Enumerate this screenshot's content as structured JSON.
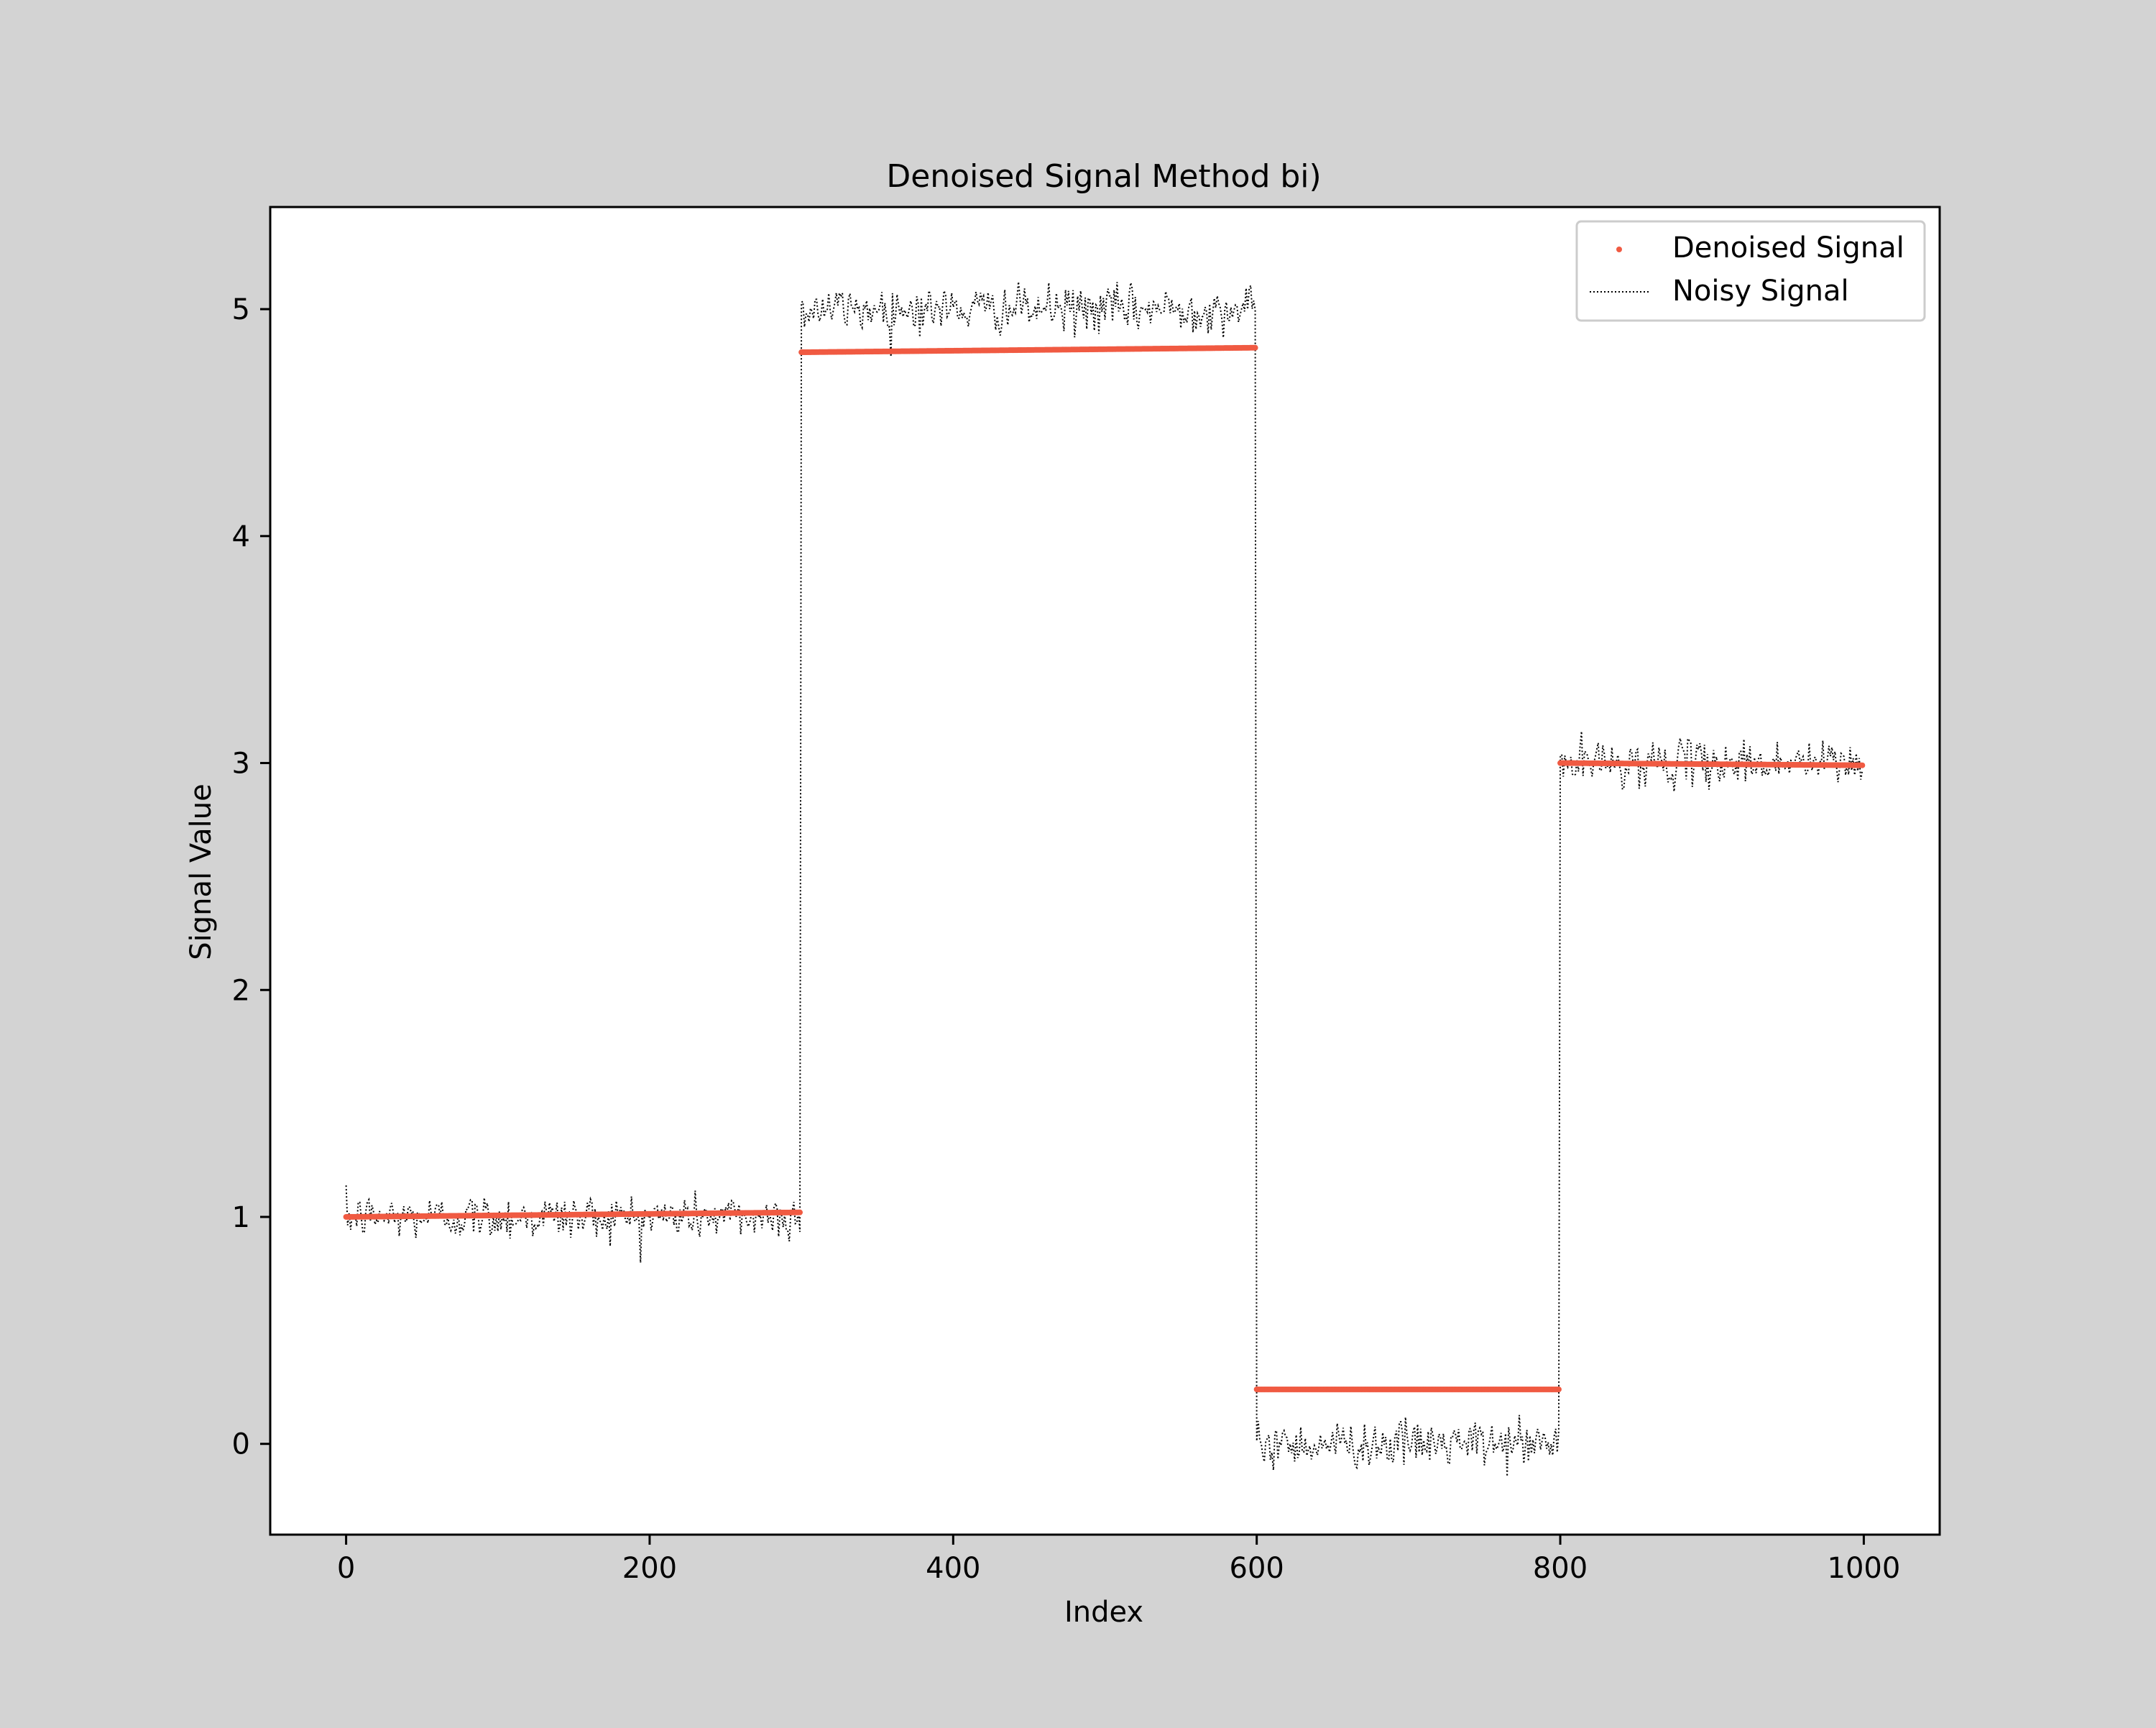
{
  "chart_data": {
    "type": "line",
    "title": "Denoised Signal Method bi)",
    "xlabel": "Index",
    "ylabel": "Signal Value",
    "xlim": [
      -50,
      1050
    ],
    "ylim": [
      -0.4,
      5.45
    ],
    "xticks": [
      0,
      200,
      400,
      600,
      800,
      1000
    ],
    "xtick_labels": [
      "0",
      "200",
      "400",
      "600",
      "800",
      "1000"
    ],
    "yticks": [
      0,
      1,
      2,
      3,
      4,
      5
    ],
    "ytick_labels": [
      "0",
      "1",
      "2",
      "3",
      "4",
      "5"
    ],
    "grid": false,
    "legend_position": "upper right",
    "series": [
      {
        "name": "Denoised Signal",
        "style": "markers",
        "color": "#f05a42",
        "segments": [
          {
            "x_start": 0,
            "x_end": 299,
            "y_start": 1.0,
            "y_end": 1.02
          },
          {
            "x_start": 300,
            "x_end": 599,
            "y_start": 4.81,
            "y_end": 4.83
          },
          {
            "x_start": 600,
            "x_end": 799,
            "y_start": 0.24,
            "y_end": 0.24
          },
          {
            "x_start": 800,
            "x_end": 999,
            "y_start": 3.0,
            "y_end": 2.99
          }
        ]
      },
      {
        "name": "Noisy Signal",
        "style": "dotted-line",
        "color": "#000000",
        "segments": [
          {
            "x_start": 0,
            "x_end": 299,
            "level": 1.0,
            "noise_std": 0.05
          },
          {
            "x_start": 300,
            "x_end": 599,
            "level": 5.0,
            "noise_std": 0.05
          },
          {
            "x_start": 600,
            "x_end": 799,
            "level": 0.0,
            "noise_std": 0.05
          },
          {
            "x_start": 800,
            "x_end": 999,
            "level": 3.0,
            "noise_std": 0.05
          }
        ]
      }
    ]
  }
}
